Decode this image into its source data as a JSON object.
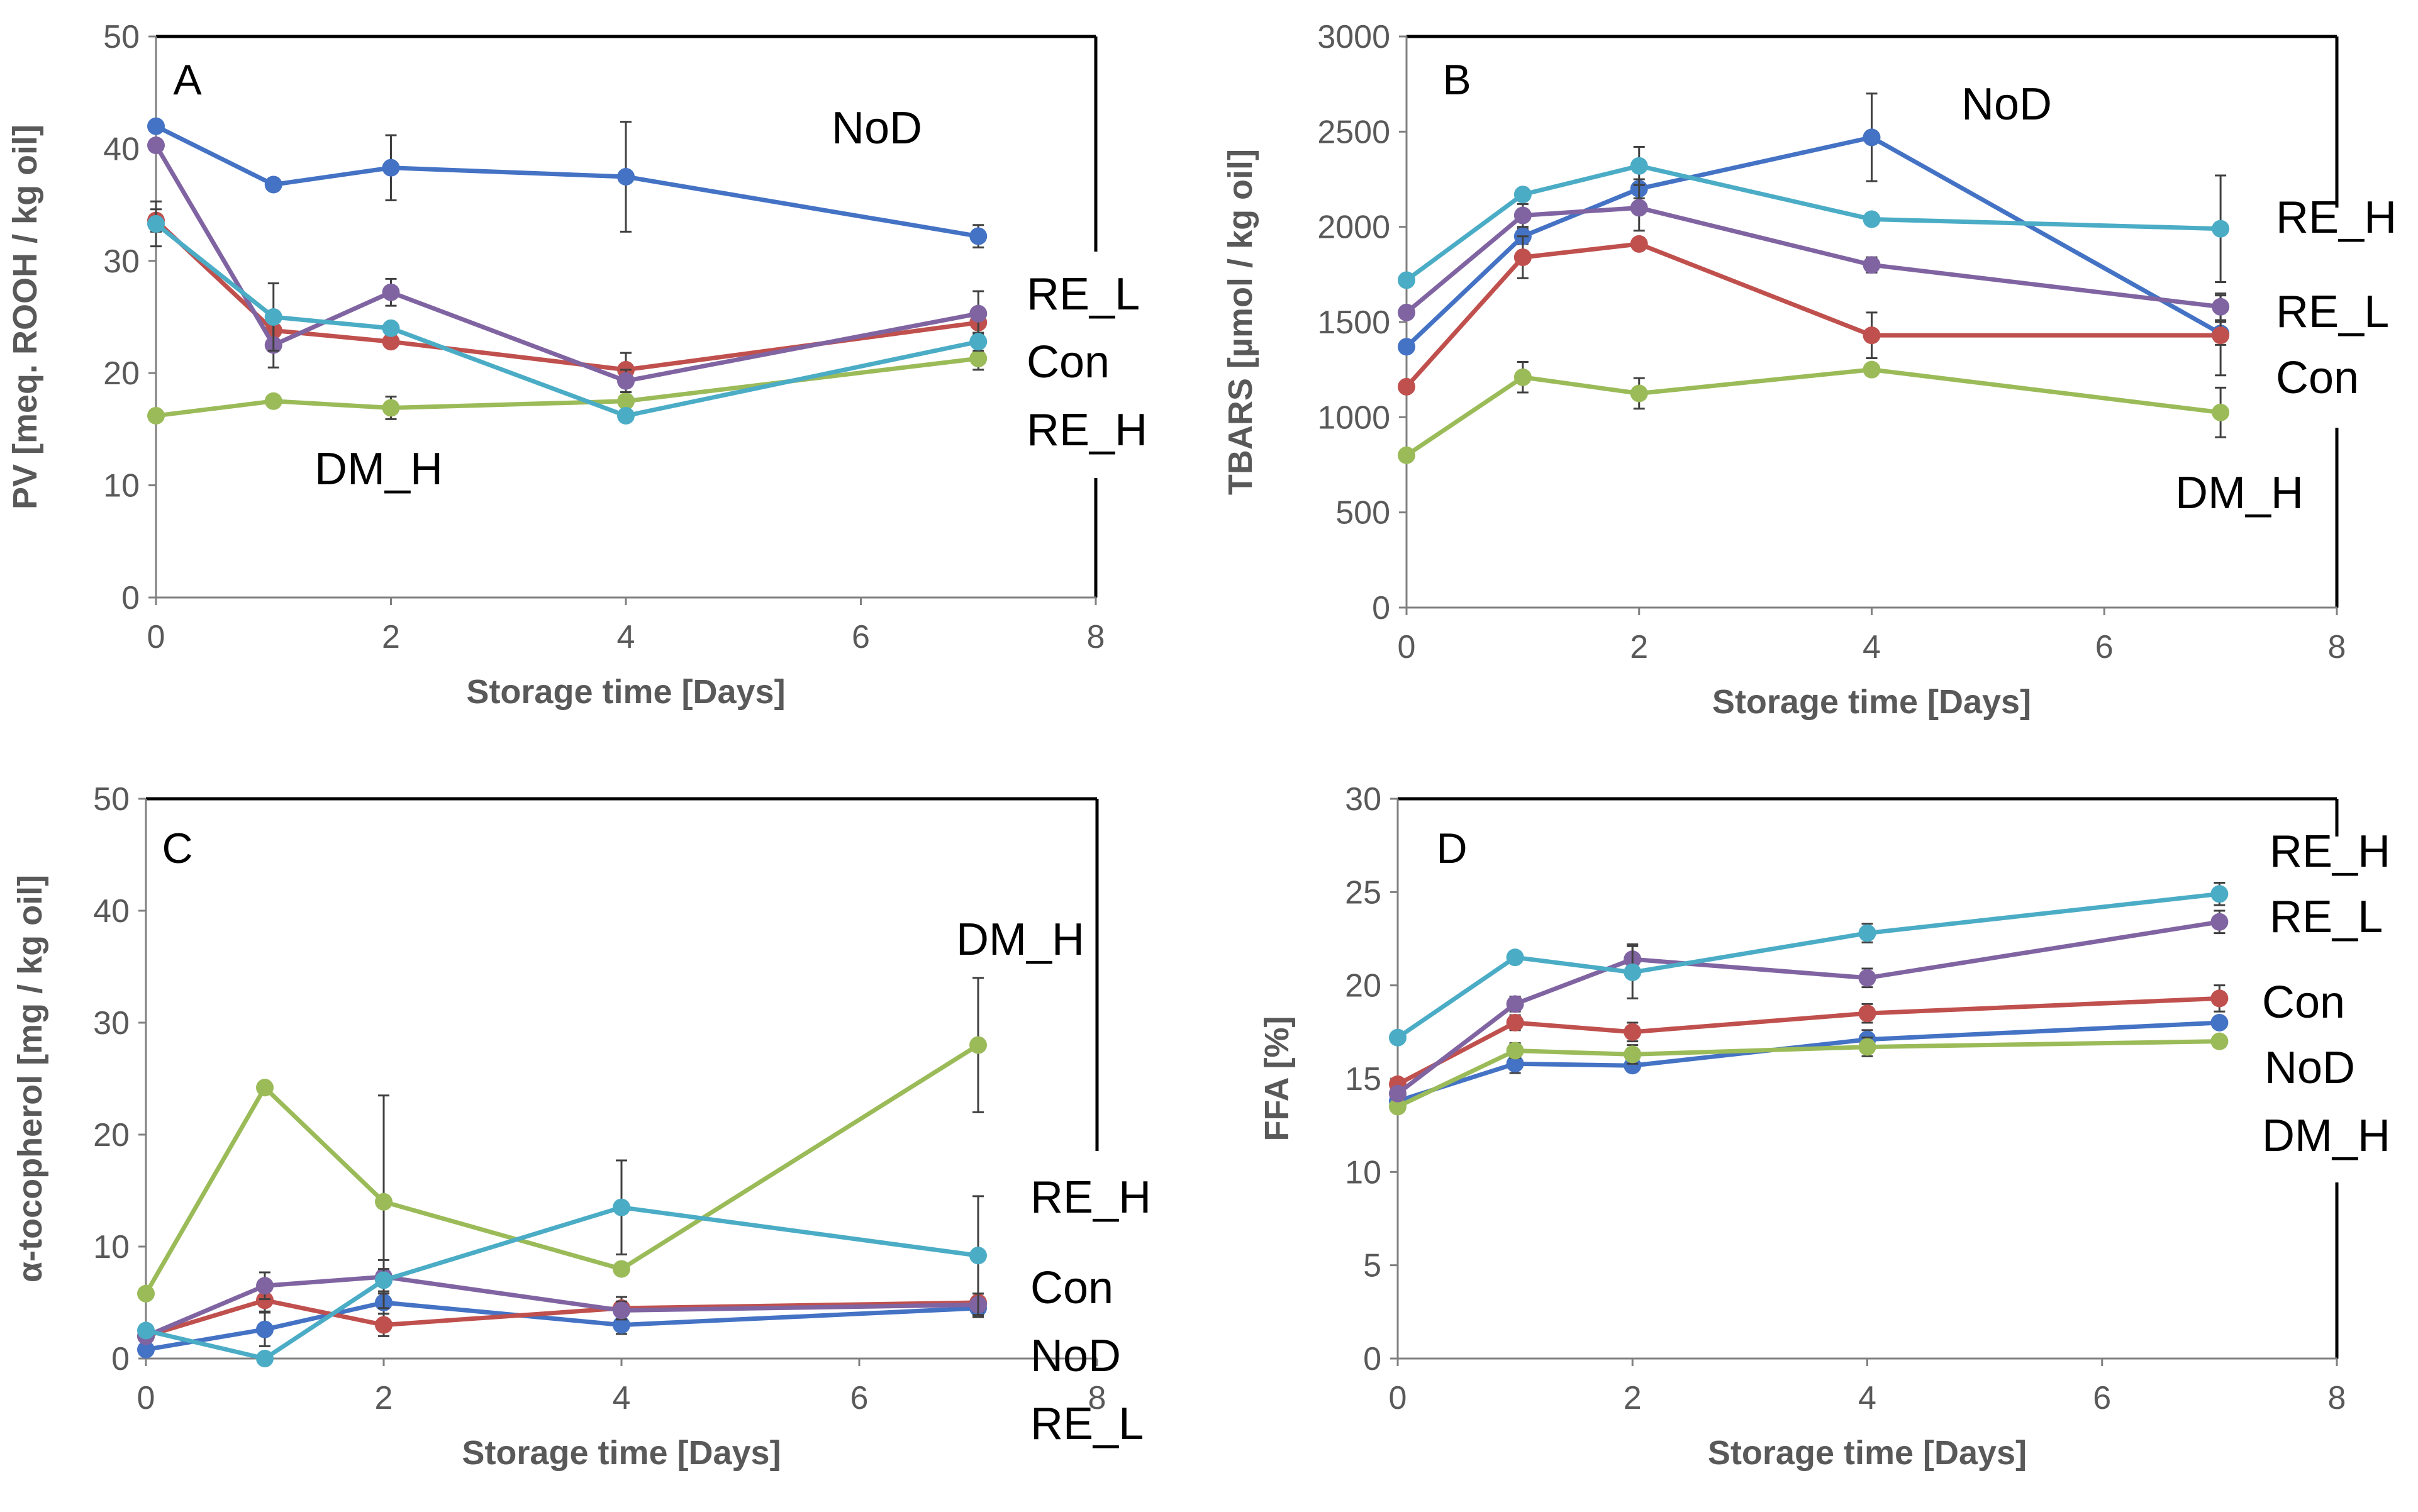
{
  "figure": {
    "description_hidden": true
  },
  "colors": {
    "NoD": "#4472C4",
    "Con": "#C0504D",
    "DM_H": "#9BBB59",
    "RE_L": "#8064A2",
    "RE_H": "#4BACC6",
    "axis": "#808080",
    "frame": "#000000"
  },
  "chart_data": [
    {
      "type": "line",
      "panel": "A",
      "xlabel": "Storage time [Days]",
      "ylabel": "PV [meq. ROOH / kg oil]",
      "xlim": [
        0,
        8
      ],
      "xticks": [
        0,
        2,
        4,
        6,
        8
      ],
      "ylim": [
        0,
        50
      ],
      "yticks": [
        0,
        10,
        20,
        30,
        40,
        50
      ],
      "x": [
        0,
        1,
        2,
        4,
        7
      ],
      "series": [
        {
          "name": "NoD",
          "values": [
            42.0,
            36.8,
            38.3,
            37.5,
            32.2
          ],
          "err": [
            0.3,
            0.5,
            2.9,
            4.9,
            1.0
          ]
        },
        {
          "name": "Con",
          "values": [
            33.6,
            23.8,
            22.8,
            20.3,
            24.5
          ],
          "err": [
            1.0,
            0.5,
            0.5,
            1.5,
            1.0
          ]
        },
        {
          "name": "DM_H",
          "values": [
            16.2,
            17.5,
            16.9,
            17.5,
            21.3
          ],
          "err": [
            0.3,
            0.3,
            1.0,
            0.5,
            1.0
          ]
        },
        {
          "name": "RE_L",
          "values": [
            40.3,
            22.5,
            27.2,
            19.3,
            25.3
          ],
          "err": [
            0.3,
            2.0,
            1.2,
            1.0,
            2.0
          ]
        },
        {
          "name": "RE_H",
          "values": [
            33.3,
            25.0,
            24.0,
            16.2,
            22.8
          ],
          "err": [
            2.0,
            3.0,
            0.5,
            0.3,
            0.8
          ]
        }
      ],
      "labels": [
        {
          "text": "NoD",
          "anchor": "inside-top-right"
        },
        {
          "text": "RE_L",
          "anchor": "right"
        },
        {
          "text": "Con",
          "anchor": "right"
        },
        {
          "text": "RE_H",
          "anchor": "right"
        },
        {
          "text": "DM_H",
          "anchor": "inside-bottom-left"
        }
      ]
    },
    {
      "type": "line",
      "panel": "B",
      "xlabel": "Storage time [Days]",
      "ylabel": "TBARS [µmol / kg oil]",
      "xlim": [
        0,
        8
      ],
      "xticks": [
        0,
        2,
        4,
        6,
        8
      ],
      "ylim": [
        0,
        3000
      ],
      "yticks": [
        0,
        500,
        1000,
        1500,
        2000,
        2500,
        3000
      ],
      "x": [
        0,
        1,
        2,
        4,
        7
      ],
      "series": [
        {
          "name": "NoD",
          "values": [
            1370,
            1950,
            2200,
            2470,
            1440
          ],
          "err": [
            30,
            40,
            50,
            230,
            60
          ]
        },
        {
          "name": "Con",
          "values": [
            1160,
            1840,
            1910,
            1430,
            1430
          ],
          "err": [
            30,
            110,
            30,
            120,
            210
          ]
        },
        {
          "name": "DM_H",
          "values": [
            800,
            1210,
            1125,
            1250,
            1025
          ],
          "err": [
            20,
            80,
            80,
            30,
            130
          ]
        },
        {
          "name": "RE_L",
          "values": [
            1550,
            2060,
            2100,
            1800,
            1580
          ],
          "err": [
            30,
            60,
            120,
            40,
            70
          ]
        },
        {
          "name": "RE_H",
          "values": [
            1720,
            2170,
            2320,
            2040,
            1990
          ],
          "err": [
            30,
            30,
            100,
            30,
            280
          ]
        }
      ],
      "labels": [
        {
          "text": "NoD",
          "anchor": "inside-top-right"
        },
        {
          "text": "RE_H",
          "anchor": "right"
        },
        {
          "text": "RE_L",
          "anchor": "right"
        },
        {
          "text": "Con",
          "anchor": "right"
        },
        {
          "text": "DM_H",
          "anchor": "inside-bottom-right"
        }
      ]
    },
    {
      "type": "line",
      "panel": "C",
      "xlabel": "Storage time [Days]",
      "ylabel": "α-tocopherol [mg / kg oil]",
      "xlim": [
        0,
        8
      ],
      "xticks": [
        0,
        2,
        4,
        6,
        8
      ],
      "ylim": [
        0,
        50
      ],
      "yticks": [
        0,
        10,
        20,
        30,
        40,
        50
      ],
      "x": [
        0,
        1,
        2,
        4,
        7
      ],
      "series": [
        {
          "name": "NoD",
          "values": [
            0.8,
            2.6,
            5.0,
            3.0,
            4.5
          ],
          "err": [
            0.4,
            1.5,
            1.0,
            0.8,
            0.8
          ]
        },
        {
          "name": "Con",
          "values": [
            2.0,
            5.2,
            3.0,
            4.5,
            5.0
          ],
          "err": [
            0.3,
            1.0,
            1.0,
            1.0,
            0.8
          ]
        },
        {
          "name": "DM_H",
          "values": [
            5.8,
            24.2,
            14.0,
            8.0,
            28.0
          ],
          "err": [
            0.3,
            0.3,
            9.5,
            0.5,
            6.0
          ]
        },
        {
          "name": "RE_L",
          "values": [
            2.0,
            6.5,
            7.3,
            4.3,
            4.8
          ],
          "err": [
            0.3,
            1.2,
            1.5,
            0.8,
            1.0
          ]
        },
        {
          "name": "RE_H",
          "values": [
            2.5,
            0.0,
            7.0,
            13.5,
            9.2
          ],
          "err": [
            0.5,
            0.5,
            1.0,
            4.2,
            5.3
          ]
        }
      ],
      "labels": [
        {
          "text": "DM_H",
          "anchor": "inside-top-right"
        },
        {
          "text": "RE_H",
          "anchor": "right"
        },
        {
          "text": "Con",
          "anchor": "right"
        },
        {
          "text": "NoD",
          "anchor": "right"
        },
        {
          "text": "RE_L",
          "anchor": "right"
        }
      ]
    },
    {
      "type": "line",
      "panel": "D",
      "xlabel": "Storage time [Days]",
      "ylabel": "FFA [%]",
      "xlim": [
        0,
        8
      ],
      "xticks": [
        0,
        2,
        4,
        6,
        8
      ],
      "ylim": [
        0,
        30
      ],
      "yticks": [
        0,
        5,
        10,
        15,
        20,
        25,
        30
      ],
      "x": [
        0,
        1,
        2,
        4,
        7
      ],
      "series": [
        {
          "name": "NoD",
          "values": [
            13.8,
            15.8,
            15.7,
            17.1,
            18.0
          ],
          "err": [
            0.4,
            0.5,
            0.3,
            0.5,
            0.3
          ]
        },
        {
          "name": "Con",
          "values": [
            14.7,
            18.0,
            17.5,
            18.5,
            19.3
          ],
          "err": [
            0.3,
            0.4,
            0.5,
            0.5,
            0.7
          ]
        },
        {
          "name": "DM_H",
          "values": [
            13.5,
            16.5,
            16.3,
            16.7,
            17.0
          ],
          "err": [
            0.3,
            0.4,
            0.5,
            0.5,
            0.3
          ]
        },
        {
          "name": "RE_L",
          "values": [
            14.2,
            19.0,
            21.4,
            20.4,
            23.4
          ],
          "err": [
            0.3,
            0.4,
            0.8,
            0.5,
            0.6
          ]
        },
        {
          "name": "RE_H",
          "values": [
            17.2,
            21.5,
            20.7,
            22.8,
            24.9
          ],
          "err": [
            0.3,
            0.3,
            1.4,
            0.5,
            0.6
          ]
        }
      ],
      "labels": [
        {
          "text": "RE_H",
          "anchor": "right"
        },
        {
          "text": "RE_L",
          "anchor": "right"
        },
        {
          "text": "Con",
          "anchor": "right"
        },
        {
          "text": "NoD",
          "anchor": "right"
        },
        {
          "text": "DM_H",
          "anchor": "right"
        }
      ]
    }
  ]
}
